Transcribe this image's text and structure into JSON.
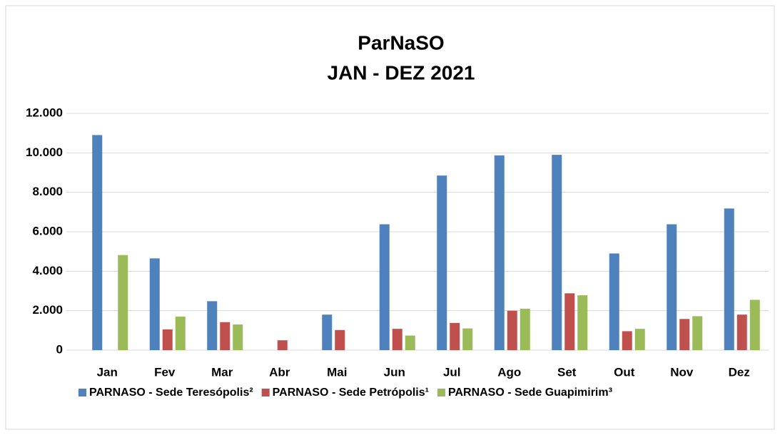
{
  "chart_data": {
    "type": "bar",
    "title": "ParNaSO",
    "subtitle": "JAN - DEZ 2021",
    "categories": [
      "Jan",
      "Fev",
      "Mar",
      "Abr",
      "Mai",
      "Jun",
      "Jul",
      "Ago",
      "Set",
      "Out",
      "Nov",
      "Dez"
    ],
    "series": [
      {
        "name": "PARNASO - Sede Teresópolis²",
        "color": "#4f81bd",
        "values": [
          10900,
          4650,
          2480,
          0,
          1800,
          6380,
          8850,
          9870,
          9900,
          4900,
          6380,
          7180
        ]
      },
      {
        "name": "PARNASO - Sede Petrópolis¹",
        "color": "#c0504d",
        "values": [
          0,
          1050,
          1420,
          500,
          1020,
          1080,
          1380,
          2000,
          2880,
          960,
          1580,
          1800
        ]
      },
      {
        "name": "PARNASO - Sede Guapimirim³",
        "color": "#9bbb59",
        "values": [
          4820,
          1700,
          1300,
          0,
          0,
          740,
          1100,
          2100,
          2780,
          1080,
          1720,
          2550
        ]
      }
    ],
    "ylim": [
      0,
      12000
    ],
    "yticks": [
      0,
      {
        "value": 2000,
        "label": "2.000"
      },
      {
        "value": 4000,
        "label": "4.000"
      },
      {
        "value": 6000,
        "label": "6.000"
      },
      {
        "value": 8000,
        "label": "8.000"
      },
      {
        "value": 10000,
        "label": "10.000"
      },
      {
        "value": 12000,
        "label": "12.000"
      }
    ],
    "grid": true,
    "legend": "bottom"
  }
}
